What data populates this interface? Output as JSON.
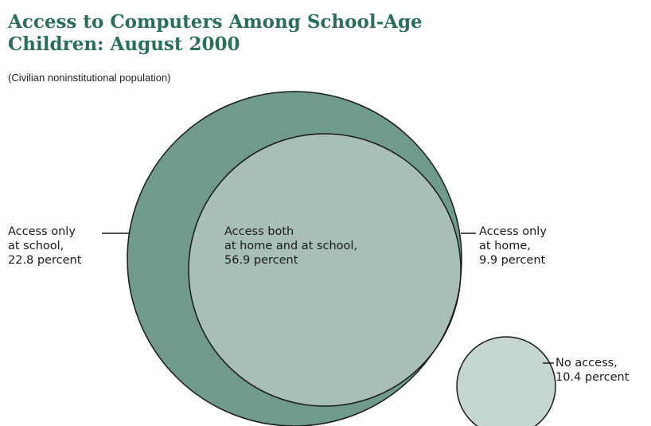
{
  "title_line1": "Access to Computers Among School-Age",
  "title_line2": "Children:  August 2000",
  "subtitle": "(Civilian noninstitutional population)",
  "colors": {
    "title": "#2b6e5c",
    "school_only": "#6f9a8c",
    "both": "#a8bfb5",
    "home_only": "#dbe4e1",
    "no_access": "#c5d6cf",
    "outline": "#1a1a1a"
  },
  "chart_data": {
    "type": "venn",
    "title": "Access to Computers Among School-Age Children:  August 2000",
    "subtitle": "(Civilian noninstitutional population)",
    "categories": [
      "Access only at school",
      "Access both at home and at school",
      "Access only at home",
      "No access"
    ],
    "values": [
      22.8,
      56.9,
      9.9,
      10.4
    ],
    "unit": "percent"
  },
  "labels": {
    "school_only": {
      "line1": "Access only",
      "line2": "at school,",
      "line3": "22.8 percent"
    },
    "both": {
      "line1": "Access both",
      "line2": "at home and at school,",
      "line3": "56.9 percent"
    },
    "home_only": {
      "line1": "Access only",
      "line2": "at home,",
      "line3": "9.9 percent"
    },
    "no_access": {
      "line1": "No access,",
      "line2": "10.4 percent"
    }
  }
}
